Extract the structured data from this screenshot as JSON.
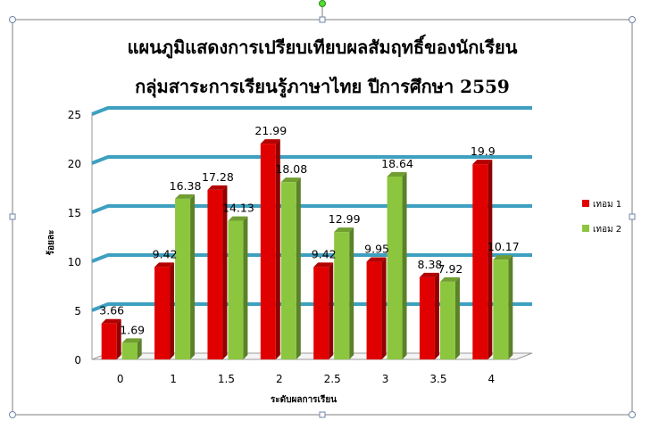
{
  "chart_data": {
    "type": "bar",
    "title": "แผนภูมิแสดงการเปรียบเทียบผลสัมฤทธิ์ของนักเรียน",
    "subtitle": "กลุ่มสาระการเรียนรู้ภาษาไทย ปีการศึกษา 2559",
    "xlabel": "ระดับผลการเรียน",
    "ylabel": "ร้อยละ",
    "categories": [
      "0",
      "1",
      "1.5",
      "2",
      "2.5",
      "3",
      "3.5",
      "4"
    ],
    "series": [
      {
        "name": "เทอม 1",
        "color": "#e00000",
        "values": [
          3.66,
          9.42,
          17.28,
          21.99,
          9.42,
          9.95,
          8.38,
          19.9
        ],
        "labels": [
          "3.66",
          "9.42",
          "17.28",
          "21.99",
          "9.42",
          "9.95",
          "8.38",
          "19.9"
        ]
      },
      {
        "name": "เทอม 2",
        "color": "#8cc63f",
        "values": [
          1.69,
          16.38,
          14.13,
          18.08,
          12.99,
          18.64,
          7.92,
          10.17
        ],
        "labels": [
          "1.69",
          "16.38",
          "14.13",
          "18.08",
          "12.99",
          "18.64",
          "7.92",
          "10.17"
        ]
      }
    ],
    "yticks": [
      "0",
      "5",
      "10",
      "15",
      "20",
      "25"
    ],
    "ylim": [
      0,
      25
    ],
    "grid": true,
    "gridline_color": "#3ea0c0",
    "legend": "right"
  }
}
